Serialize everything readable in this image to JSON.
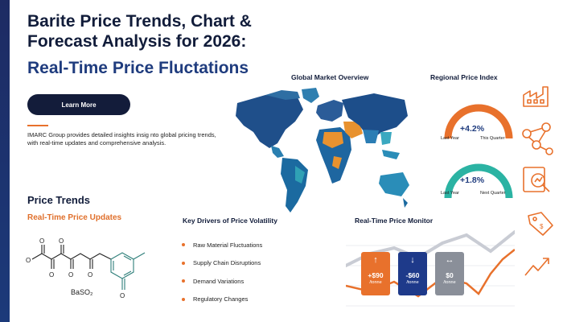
{
  "header": {
    "title": "Barite Price Trends, Chart & Forecast Analysis for 2026:",
    "subtitle": "Real-Time Price Fluctations",
    "learn_more": "Learn More",
    "description": "IMARC Group provides detailed insights insig nto global pricing trends, with real-time updates and comprehensive analysis."
  },
  "price_trends": {
    "heading": "Price Trends",
    "subheading": "Real-Time Price Updates",
    "formula": "BaSO₂"
  },
  "map": {
    "title": "Global Market Overview"
  },
  "regional": {
    "title": "Regional Price Index",
    "gauges": [
      {
        "value": "+4.2%",
        "left_label": "Last Year",
        "right_label": "This Quarter",
        "color": "#e8712c"
      },
      {
        "value": "+1.8%",
        "left_label": "Last Year",
        "right_label": "Next Quarter",
        "color": "#2bb3a3"
      }
    ]
  },
  "drivers": {
    "title": "Key Drivers of Price Volatility",
    "items": [
      "Raw Material Fluctuations",
      "Supply Chain Disruptions",
      "Demand Variations",
      "Regulatory Changes"
    ]
  },
  "monitor": {
    "title": "Real-Time Price Monitor",
    "cards": [
      {
        "icon": "arrow-up-icon",
        "arrow": "↑",
        "value": "+$90",
        "unit": "/tonne",
        "color": "#e8712c"
      },
      {
        "icon": "arrow-down-icon",
        "arrow": "↓",
        "value": "-$60",
        "unit": "/tonne",
        "color": "#1e3a8a"
      },
      {
        "icon": "arrow-left-right-icon",
        "arrow": "↔",
        "value": "$0",
        "unit": "/tonne",
        "color": "#8a8f99"
      }
    ]
  },
  "icons": [
    "factory-icon",
    "network-icon",
    "magnifier-chart-icon",
    "price-tag-icon",
    "trend-arrow-icon"
  ],
  "colors": {
    "navy": "#131c3a",
    "blue": "#1f3c7e",
    "orange": "#e8712c",
    "teal": "#2bb3a3"
  }
}
